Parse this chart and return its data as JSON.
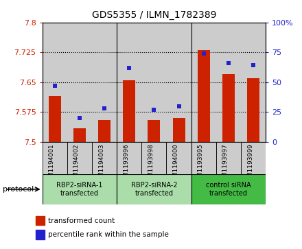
{
  "title": "GDS5355 / ILMN_1782389",
  "samples": [
    "GSM1194001",
    "GSM1194002",
    "GSM1194003",
    "GSM1193996",
    "GSM1193998",
    "GSM1194000",
    "GSM1193995",
    "GSM1193997",
    "GSM1193999"
  ],
  "transformed_count": [
    7.615,
    7.535,
    7.555,
    7.655,
    7.555,
    7.56,
    7.73,
    7.67,
    7.66
  ],
  "percentile_rank": [
    47,
    20,
    28,
    62,
    27,
    30,
    74,
    66,
    64
  ],
  "ylim_left": [
    7.5,
    7.8
  ],
  "ylim_right": [
    0,
    100
  ],
  "yticks_left": [
    7.5,
    7.575,
    7.65,
    7.725,
    7.8
  ],
  "yticks_right": [
    0,
    25,
    50,
    75,
    100
  ],
  "groups": [
    {
      "label": "RBP2-siRNA-1\ntransfected",
      "indices": [
        0,
        1,
        2
      ],
      "color": "#aaddaa"
    },
    {
      "label": "RBP2-siRNA-2\ntransfected",
      "indices": [
        3,
        4,
        5
      ],
      "color": "#aaddaa"
    },
    {
      "label": "control siRNA\ntransfected",
      "indices": [
        6,
        7,
        8
      ],
      "color": "#44bb44"
    }
  ],
  "bar_color": "#cc2200",
  "dot_color": "#2222cc",
  "bar_width": 0.5,
  "bg_color": "#cccccc",
  "protocol_label": "protocol",
  "legend_bar_label": "transformed count",
  "legend_dot_label": "percentile rank within the sample",
  "title_fontsize": 10
}
